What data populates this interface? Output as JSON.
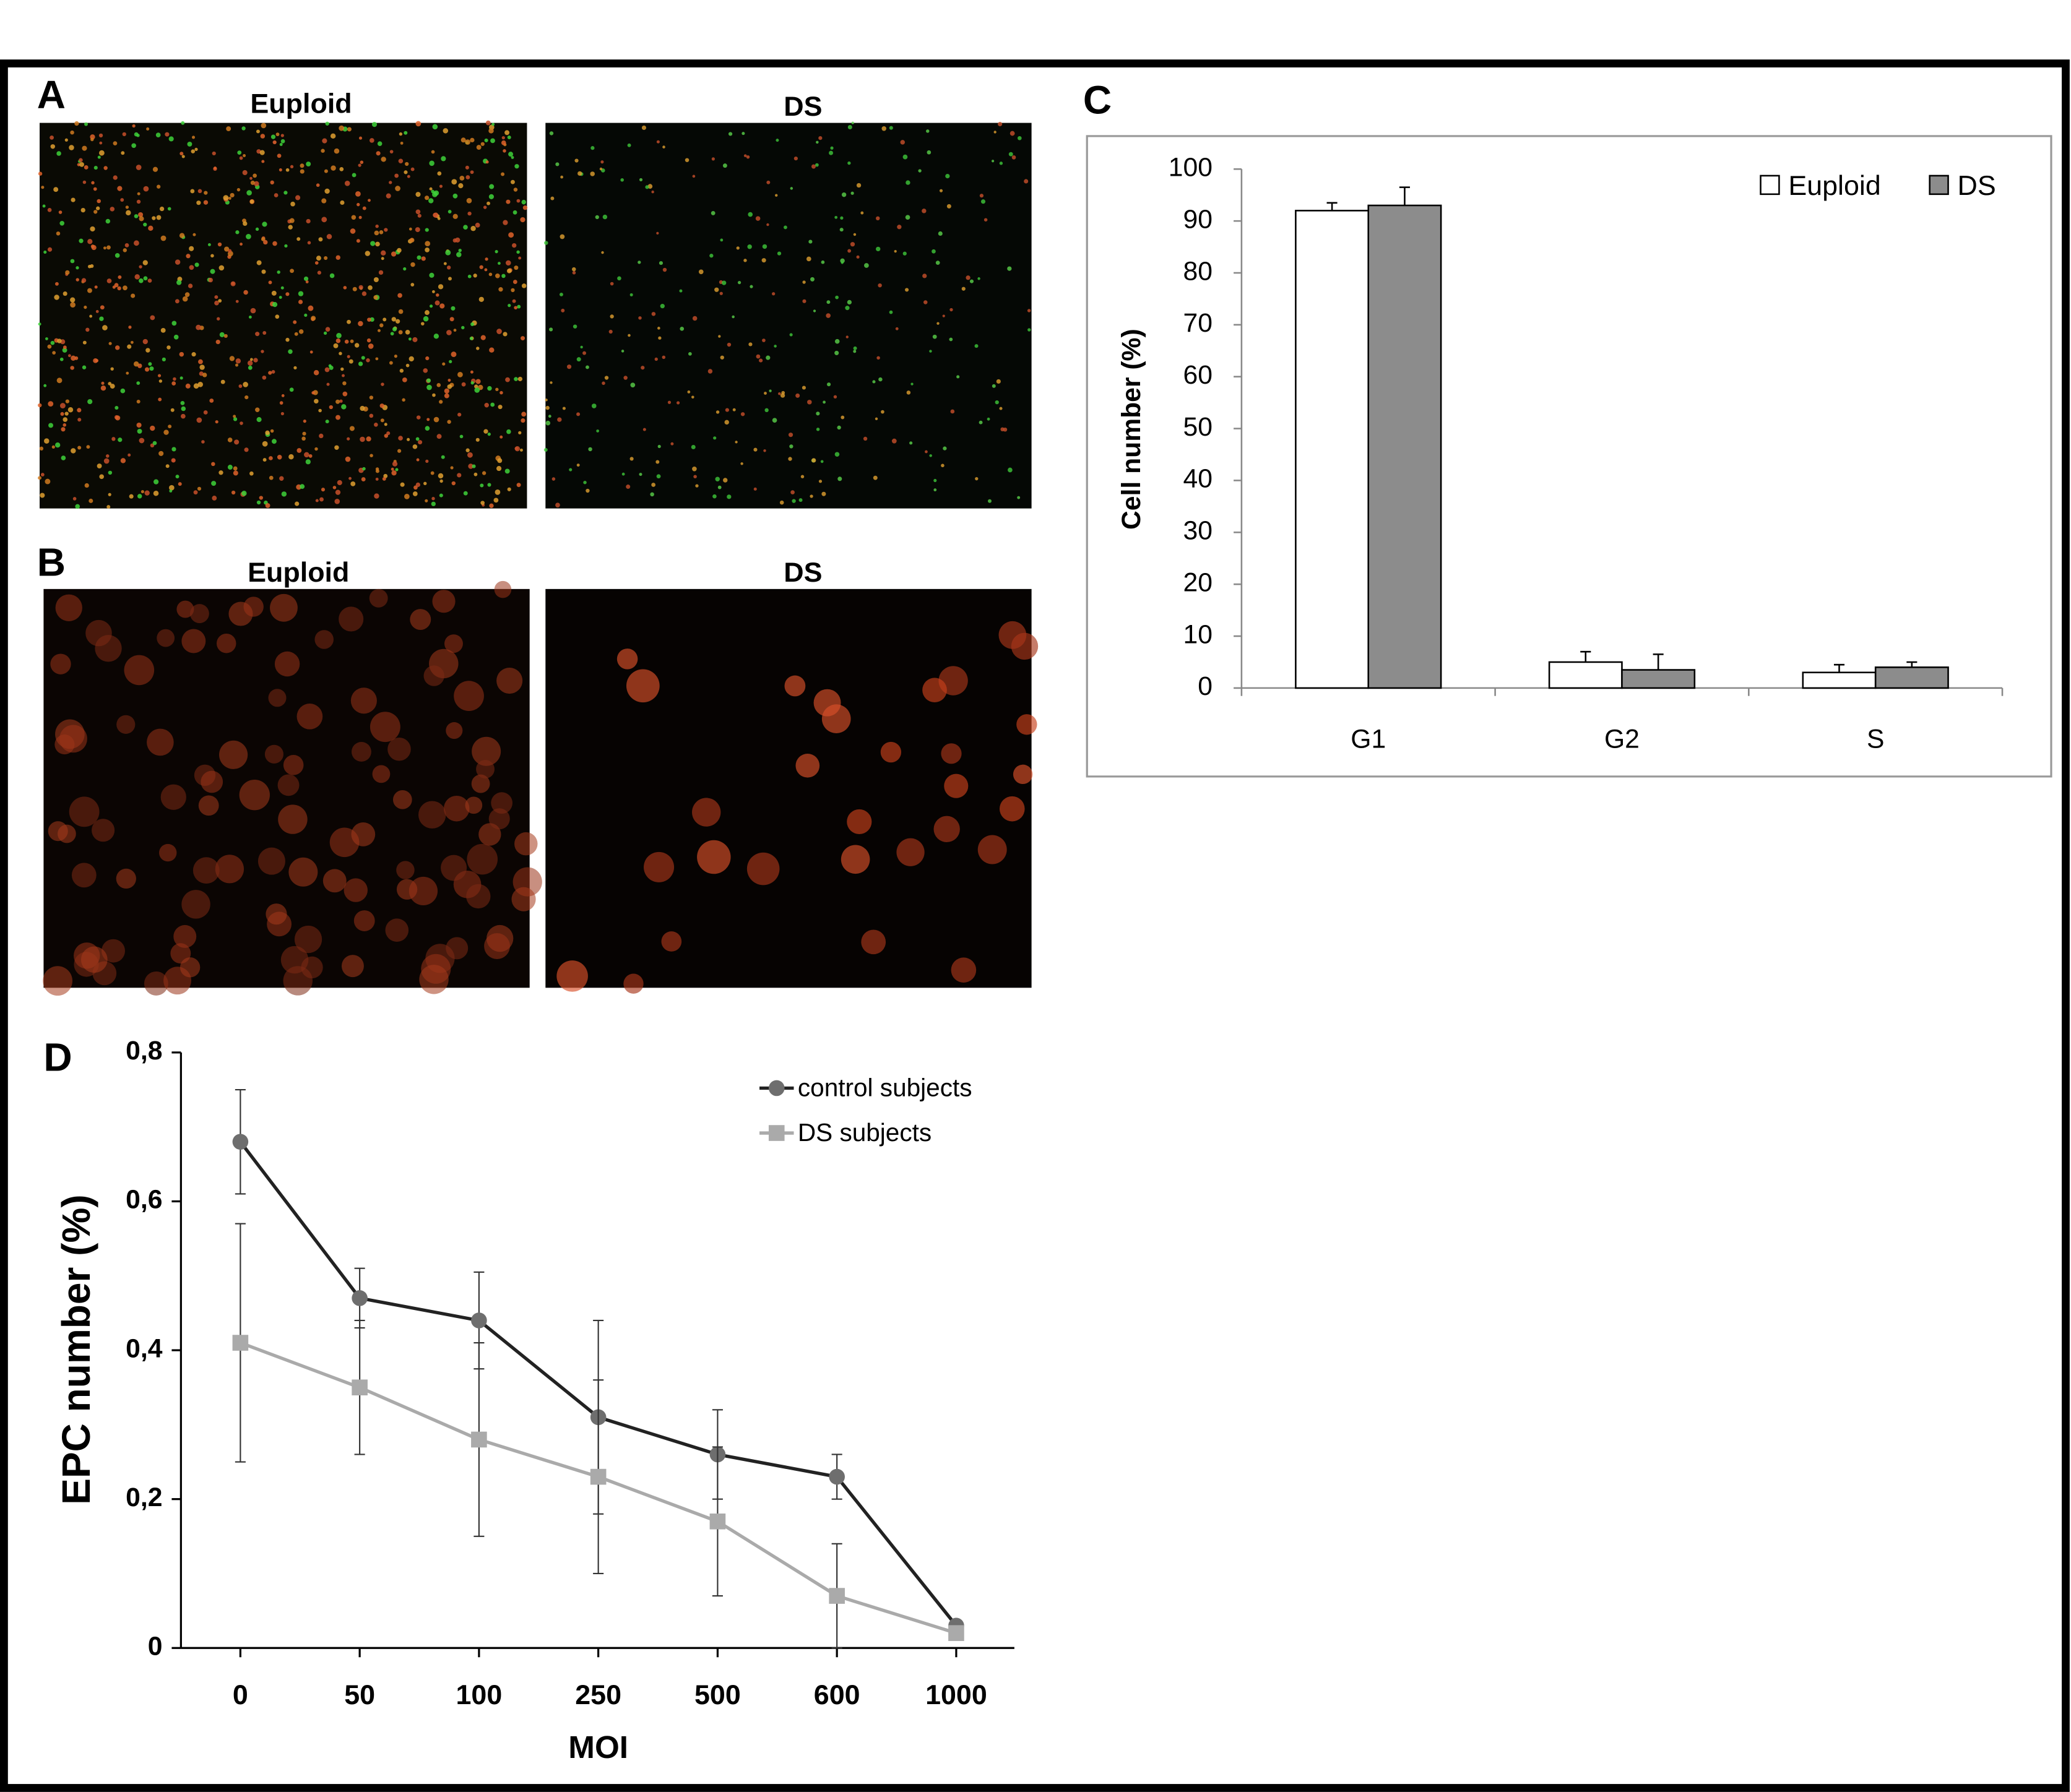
{
  "panels": {
    "a": {
      "label": "A",
      "left_title": "Euploid",
      "right_title": "DS"
    },
    "b": {
      "label": "B",
      "left_title": "Euploid",
      "right_title": "DS"
    },
    "c": {
      "label": "C"
    },
    "d": {
      "label": "D"
    }
  },
  "chart_data": [
    {
      "type": "bar",
      "ylabel": "Cell number (%)",
      "categories": [
        "G1",
        "G2",
        "S"
      ],
      "series": [
        {
          "name": "Euploid",
          "color": "#ffffff",
          "values": [
            92,
            5,
            3
          ],
          "errors": [
            1.5,
            2,
            1.5
          ]
        },
        {
          "name": "DS",
          "color": "#8c8c8c",
          "values": [
            93,
            3.5,
            4
          ],
          "errors": [
            3.5,
            3,
            1
          ]
        }
      ],
      "ylim": [
        0,
        100
      ],
      "yticks": [
        0,
        10,
        20,
        30,
        40,
        50,
        60,
        70,
        80,
        90,
        100
      ],
      "legend": "top-right"
    },
    {
      "type": "line",
      "xlabel": "MOI",
      "ylabel": "EPC number (%)",
      "categories": [
        "0",
        "50",
        "100",
        "250",
        "500",
        "600",
        "1000"
      ],
      "series": [
        {
          "name": "control subjects",
          "color": "#222222",
          "marker": "circle",
          "values": [
            0.68,
            0.47,
            0.44,
            0.31,
            0.26,
            0.23,
            0.03
          ],
          "errors": [
            0.07,
            0.04,
            0.065,
            0.13,
            0.06,
            0.03,
            0
          ]
        },
        {
          "name": "DS subjects",
          "color": "#aaaaaa",
          "marker": "square",
          "values": [
            0.41,
            0.35,
            0.28,
            0.23,
            0.17,
            0.07,
            0.02
          ],
          "errors": [
            0.16,
            0.09,
            0.13,
            0.13,
            0.1,
            0.07,
            0
          ]
        }
      ],
      "ylim": [
        0,
        0.8
      ],
      "yticks": [
        0,
        {
          "value": 0.2,
          "label": "0,2"
        },
        {
          "value": 0.4,
          "label": "0,4"
        },
        {
          "value": 0.6,
          "label": "0,6"
        },
        {
          "value": 0.8,
          "label": "0,8"
        }
      ],
      "legend": "top-right"
    }
  ]
}
